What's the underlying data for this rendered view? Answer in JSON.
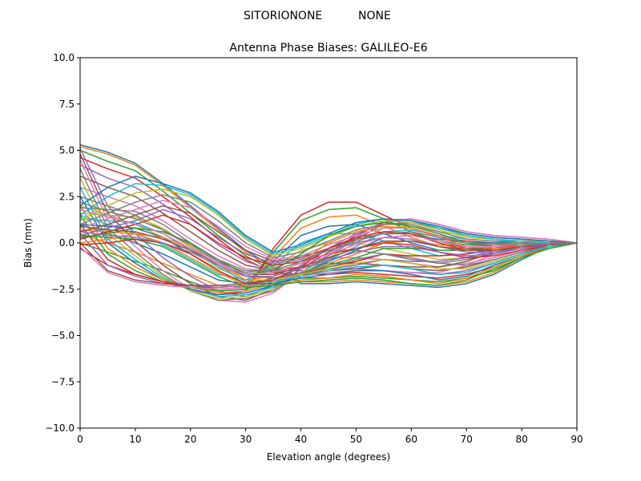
{
  "figure": {
    "suptitle_left": "SITORIONONE",
    "suptitle_right": "NONE"
  },
  "chart_data": {
    "type": "line",
    "title": "Antenna Phase Biases: GALILEO-E6",
    "xlabel": "Elevation angle (degrees)",
    "ylabel": "Bias (mm)",
    "xlim": [
      0,
      90
    ],
    "ylim": [
      -10,
      10
    ],
    "xticks": [
      0,
      10,
      20,
      30,
      40,
      50,
      60,
      70,
      80,
      90
    ],
    "yticks": [
      -10.0,
      -7.5,
      -5.0,
      -2.5,
      0.0,
      2.5,
      5.0,
      7.5,
      10.0
    ],
    "ytick_labels": [
      "−10.0",
      "−7.5",
      "−5.0",
      "−2.5",
      "0.0",
      "2.5",
      "5.0",
      "7.5",
      "10.0"
    ],
    "x": [
      0,
      5,
      10,
      15,
      20,
      25,
      30,
      35,
      40,
      45,
      50,
      55,
      60,
      65,
      70,
      75,
      80,
      85,
      90
    ],
    "grid": false,
    "legend": "none",
    "palette": [
      "#1f77b4",
      "#ff7f0e",
      "#2ca02c",
      "#d62728",
      "#9467bd",
      "#8c564b",
      "#e377c2",
      "#7f7f7f",
      "#bcbd22",
      "#17becf"
    ],
    "series": [
      {
        "values": [
          5.3,
          4.9,
          4.3,
          3.2,
          2.0,
          0.8,
          -0.4,
          -1.3,
          -2.2,
          -2.2,
          -2.1,
          -2.2,
          -2.3,
          -2.4,
          -2.2,
          -1.7,
          -0.9,
          -0.2,
          0.0
        ]
      },
      {
        "values": [
          5.2,
          4.8,
          4.2,
          3.1,
          1.9,
          0.7,
          -0.5,
          -1.4,
          -2.1,
          -2.1,
          -2.0,
          -2.1,
          -2.2,
          -2.3,
          -2.1,
          -1.6,
          -0.8,
          -0.2,
          0.0
        ]
      },
      {
        "values": [
          5.0,
          4.4,
          3.9,
          2.8,
          1.6,
          0.4,
          -0.7,
          -1.5,
          -1.9,
          -1.9,
          -1.8,
          -1.9,
          -2.0,
          -2.1,
          -1.9,
          -1.5,
          -0.8,
          -0.2,
          0.0
        ]
      },
      {
        "values": [
          4.6,
          4.0,
          3.5,
          2.5,
          1.4,
          0.2,
          -0.9,
          -1.6,
          -1.7,
          -1.7,
          -1.6,
          -1.7,
          -1.8,
          -1.9,
          -1.7,
          -1.3,
          -0.7,
          -0.2,
          0.0
        ]
      },
      {
        "values": [
          4.2,
          3.5,
          3.0,
          2.1,
          1.0,
          -0.1,
          -1.0,
          -1.5,
          -1.5,
          -1.4,
          -1.4,
          -1.5,
          -1.6,
          -1.7,
          -1.5,
          -1.1,
          -0.6,
          -0.1,
          0.0
        ]
      },
      {
        "values": [
          3.6,
          3.0,
          2.5,
          1.6,
          0.6,
          -0.4,
          -1.2,
          -1.5,
          -1.3,
          -1.1,
          -1.1,
          -1.2,
          -1.4,
          -1.5,
          -1.3,
          -0.9,
          -0.5,
          -0.1,
          0.0
        ]
      },
      {
        "values": [
          3.0,
          2.5,
          2.0,
          1.2,
          0.2,
          -0.7,
          -1.4,
          -1.5,
          -1.0,
          -0.8,
          -0.8,
          -0.9,
          -1.1,
          -1.3,
          -1.1,
          -0.8,
          -0.4,
          -0.1,
          0.0
        ]
      },
      {
        "values": [
          2.5,
          2.0,
          1.5,
          0.7,
          -0.2,
          -1.0,
          -1.6,
          -1.4,
          -0.7,
          -0.4,
          -0.4,
          -0.6,
          -0.9,
          -1.1,
          -0.9,
          -0.6,
          -0.3,
          -0.1,
          0.0
        ]
      },
      {
        "values": [
          2.0,
          1.5,
          1.0,
          0.3,
          -0.6,
          -1.4,
          -1.8,
          -1.3,
          -0.4,
          0.0,
          0.0,
          -0.3,
          -0.6,
          -0.9,
          -0.8,
          -0.5,
          -0.3,
          -0.1,
          0.0
        ]
      },
      {
        "values": [
          1.5,
          1.0,
          0.5,
          -0.1,
          -0.9,
          -1.7,
          -2.0,
          -1.2,
          0.0,
          0.5,
          0.5,
          0.1,
          -0.3,
          -0.7,
          -0.6,
          -0.4,
          -0.2,
          0.0,
          0.0
        ]
      },
      {
        "values": [
          1.0,
          0.5,
          0.0,
          -0.6,
          -1.3,
          -2.0,
          -2.2,
          -1.0,
          0.4,
          0.9,
          1.0,
          0.5,
          0.0,
          -0.4,
          -0.4,
          -0.3,
          -0.1,
          0.0,
          0.0
        ]
      },
      {
        "values": [
          0.5,
          0.0,
          -0.5,
          -1.1,
          -1.7,
          -2.3,
          -2.4,
          -0.8,
          0.8,
          1.4,
          1.5,
          0.9,
          0.3,
          -0.2,
          -0.3,
          -0.2,
          -0.1,
          0.0,
          0.0
        ]
      },
      {
        "values": [
          0.0,
          -0.5,
          -1.0,
          -1.5,
          -2.1,
          -2.6,
          -2.5,
          -0.5,
          1.2,
          1.8,
          1.9,
          1.3,
          0.6,
          0.1,
          -0.1,
          -0.1,
          0.0,
          0.0,
          0.0
        ]
      },
      {
        "values": [
          -0.3,
          -1.2,
          -1.7,
          -2.1,
          -2.5,
          -2.8,
          -2.6,
          -0.3,
          1.5,
          2.2,
          2.2,
          1.5,
          0.8,
          0.3,
          0.1,
          0.0,
          0.0,
          0.0,
          0.0
        ]
      },
      {
        "values": [
          5.1,
          2.0,
          0.5,
          -0.8,
          -1.8,
          -2.6,
          -2.9,
          -2.3,
          -1.2,
          -0.3,
          0.5,
          1.0,
          1.1,
          0.8,
          0.5,
          0.3,
          0.2,
          0.1,
          0.0
        ]
      },
      {
        "values": [
          4.8,
          1.6,
          0.1,
          -1.2,
          -2.2,
          -2.9,
          -3.1,
          -2.5,
          -1.4,
          -0.5,
          0.4,
          1.1,
          1.3,
          1.0,
          0.6,
          0.4,
          0.3,
          0.2,
          0.0
        ]
      },
      {
        "values": [
          4.5,
          1.2,
          -0.2,
          -1.5,
          -2.5,
          -3.1,
          -3.2,
          -2.7,
          -1.6,
          -0.6,
          0.3,
          1.2,
          1.3,
          1.0,
          0.6,
          0.4,
          0.3,
          0.2,
          0.0
        ]
      },
      {
        "values": [
          4.0,
          0.8,
          -0.5,
          -1.7,
          -2.6,
          -3.1,
          -3.0,
          -2.6,
          -1.6,
          -0.7,
          0.2,
          1.0,
          1.1,
          0.8,
          0.5,
          0.3,
          0.2,
          0.1,
          0.0
        ]
      },
      {
        "values": [
          3.5,
          0.5,
          -0.7,
          -1.8,
          -2.6,
          -3.0,
          -2.9,
          -2.5,
          -1.6,
          -0.8,
          0.0,
          0.8,
          0.9,
          0.6,
          0.4,
          0.2,
          0.1,
          0.1,
          0.0
        ]
      },
      {
        "values": [
          3.0,
          0.2,
          -0.9,
          -1.9,
          -2.5,
          -2.9,
          -2.8,
          -2.4,
          -1.7,
          -0.9,
          -0.2,
          0.6,
          0.7,
          0.4,
          0.2,
          0.1,
          0.1,
          0.0,
          0.0
        ]
      },
      {
        "values": [
          2.5,
          0.0,
          -1.1,
          -2.0,
          -2.5,
          -2.8,
          -2.7,
          -2.3,
          -1.7,
          -1.0,
          -0.4,
          0.3,
          0.4,
          0.2,
          0.0,
          0.0,
          0.0,
          0.0,
          0.0
        ]
      },
      {
        "values": [
          2.0,
          -0.3,
          -1.3,
          -2.0,
          -2.4,
          -2.7,
          -2.6,
          -2.2,
          -1.7,
          -1.1,
          -0.6,
          0.0,
          0.1,
          -0.1,
          -0.2,
          -0.1,
          0.0,
          0.0,
          0.0
        ]
      },
      {
        "values": [
          1.5,
          -0.6,
          -1.5,
          -2.1,
          -2.4,
          -2.6,
          -2.5,
          -2.1,
          -1.7,
          -1.2,
          -0.8,
          -0.3,
          -0.3,
          -0.4,
          -0.4,
          -0.2,
          -0.1,
          0.0,
          0.0
        ]
      },
      {
        "values": [
          1.0,
          -0.9,
          -1.7,
          -2.1,
          -2.3,
          -2.5,
          -2.4,
          -2.0,
          -1.7,
          -1.3,
          -1.0,
          -0.6,
          -0.7,
          -0.7,
          -0.6,
          -0.3,
          -0.1,
          0.0,
          0.0
        ]
      },
      {
        "values": [
          0.5,
          -1.2,
          -1.8,
          -2.2,
          -2.3,
          -2.4,
          -2.3,
          -2.0,
          -1.7,
          -1.4,
          -1.2,
          -0.9,
          -1.0,
          -1.0,
          -0.8,
          -0.4,
          -0.2,
          0.0,
          0.0
        ]
      },
      {
        "values": [
          0.0,
          -1.5,
          -2.0,
          -2.2,
          -2.3,
          -2.3,
          -2.2,
          -1.9,
          -1.7,
          -1.5,
          -1.4,
          -1.2,
          -1.3,
          -1.3,
          -1.0,
          -0.5,
          -0.2,
          -0.1,
          0.0
        ]
      },
      {
        "values": [
          -0.2,
          -1.6,
          -2.1,
          -2.3,
          -2.4,
          -2.5,
          -2.4,
          -2.0,
          -1.8,
          -1.6,
          -1.5,
          -1.5,
          -1.6,
          -1.6,
          -1.2,
          -0.6,
          -0.3,
          -0.1,
          0.0
        ]
      },
      {
        "values": [
          1.9,
          1.8,
          1.7,
          1.0,
          0.0,
          -1.0,
          -1.8,
          -1.9,
          -1.6,
          -1.3,
          -0.9,
          -0.6,
          -0.8,
          -1.1,
          -1.2,
          -0.9,
          -0.5,
          -0.2,
          0.0
        ]
      },
      {
        "values": [
          1.6,
          1.5,
          1.4,
          0.8,
          -0.2,
          -1.2,
          -2.0,
          -2.0,
          -1.7,
          -1.4,
          -1.1,
          -0.9,
          -1.1,
          -1.4,
          -1.4,
          -1.0,
          -0.6,
          -0.2,
          0.0
        ]
      },
      {
        "values": [
          1.3,
          1.2,
          1.1,
          0.5,
          -0.4,
          -1.3,
          -2.1,
          -2.1,
          -1.8,
          -1.5,
          -1.3,
          -1.2,
          -1.4,
          -1.7,
          -1.6,
          -1.1,
          -0.6,
          -0.2,
          0.0
        ]
      },
      {
        "values": [
          1.0,
          0.9,
          0.8,
          0.3,
          -0.6,
          -1.5,
          -2.2,
          -2.2,
          -1.9,
          -1.7,
          -1.5,
          -1.5,
          -1.7,
          -2.0,
          -1.8,
          -1.2,
          -0.7,
          -0.3,
          0.0
        ]
      },
      {
        "values": [
          0.7,
          0.6,
          0.5,
          0.0,
          -0.8,
          -1.6,
          -2.3,
          -2.3,
          -2.0,
          -1.9,
          -1.7,
          -1.8,
          -2.0,
          -2.2,
          -1.9,
          -1.3,
          -0.7,
          -0.3,
          0.0
        ]
      },
      {
        "values": [
          0.4,
          0.3,
          0.2,
          -0.2,
          -1.0,
          -1.8,
          -2.4,
          -2.3,
          -2.1,
          -2.0,
          -1.9,
          -2.0,
          -2.2,
          -2.3,
          -2.0,
          -1.4,
          -0.8,
          -0.3,
          0.0
        ]
      },
      {
        "values": [
          0.2,
          0.6,
          1.0,
          1.5,
          1.0,
          0.0,
          -0.8,
          -1.2,
          -1.0,
          -0.6,
          -0.3,
          0.0,
          -0.1,
          -0.5,
          -0.8,
          -0.7,
          -0.4,
          -0.1,
          0.0
        ]
      },
      {
        "values": [
          0.4,
          0.8,
          1.2,
          1.8,
          1.3,
          0.3,
          -0.6,
          -1.1,
          -0.9,
          -0.4,
          0.0,
          0.3,
          0.2,
          -0.2,
          -0.5,
          -0.5,
          -0.3,
          -0.1,
          0.0
        ]
      },
      {
        "values": [
          0.6,
          1.0,
          1.5,
          2.0,
          1.6,
          0.6,
          -0.4,
          -1.0,
          -0.8,
          -0.3,
          0.2,
          0.5,
          0.5,
          0.1,
          -0.3,
          -0.3,
          -0.2,
          -0.1,
          0.0
        ]
      },
      {
        "values": [
          0.8,
          1.3,
          1.8,
          2.3,
          1.9,
          0.9,
          -0.2,
          -0.9,
          -0.7,
          -0.1,
          0.4,
          0.8,
          0.8,
          0.4,
          0.0,
          -0.1,
          -0.1,
          0.0,
          0.0
        ]
      },
      {
        "values": [
          1.0,
          1.6,
          2.2,
          2.6,
          2.2,
          1.2,
          0.0,
          -0.8,
          -0.5,
          0.1,
          0.7,
          1.0,
          1.0,
          0.6,
          0.2,
          0.1,
          0.0,
          0.0,
          0.0
        ]
      },
      {
        "values": [
          1.2,
          2.0,
          2.7,
          2.9,
          2.5,
          1.5,
          0.2,
          -0.7,
          -0.3,
          0.3,
          0.9,
          1.2,
          1.1,
          0.7,
          0.3,
          0.2,
          0.1,
          0.0,
          0.0
        ]
      },
      {
        "values": [
          1.5,
          2.5,
          3.2,
          3.1,
          2.6,
          1.6,
          0.3,
          -0.6,
          -0.2,
          0.4,
          1.0,
          1.3,
          1.2,
          0.8,
          0.4,
          0.2,
          0.1,
          0.0,
          0.0
        ]
      },
      {
        "values": [
          2.0,
          3.0,
          3.6,
          3.2,
          2.7,
          1.7,
          0.4,
          -0.5,
          -0.1,
          0.5,
          1.1,
          1.3,
          1.2,
          0.9,
          0.5,
          0.3,
          0.2,
          0.1,
          0.0
        ]
      },
      {
        "values": [
          0.0,
          0.2,
          0.5,
          0.3,
          -0.3,
          -1.2,
          -2.0,
          -1.8,
          -1.0,
          0.0,
          0.6,
          0.9,
          0.8,
          0.3,
          -0.2,
          -0.3,
          -0.2,
          -0.1,
          0.0
        ]
      },
      {
        "values": [
          0.3,
          0.5,
          0.8,
          0.6,
          0.0,
          -0.9,
          -1.7,
          -1.5,
          -0.6,
          0.4,
          0.9,
          1.1,
          0.9,
          0.5,
          0.0,
          -0.2,
          -0.1,
          0.0,
          0.0
        ]
      },
      {
        "values": [
          -0.1,
          0.0,
          0.2,
          0.0,
          -0.6,
          -1.5,
          -2.2,
          -2.0,
          -1.3,
          -0.3,
          0.3,
          0.6,
          0.5,
          0.0,
          -0.4,
          -0.4,
          -0.2,
          -0.1,
          0.0
        ]
      },
      {
        "values": [
          0.6,
          0.4,
          0.3,
          0.0,
          -0.5,
          -1.2,
          -1.8,
          -1.8,
          -1.4,
          -0.9,
          -0.5,
          -0.2,
          -0.2,
          -0.5,
          -0.7,
          -0.6,
          -0.3,
          -0.1,
          0.0
        ]
      },
      {
        "values": [
          0.9,
          0.7,
          0.6,
          0.2,
          -0.4,
          -1.1,
          -1.7,
          -1.7,
          -1.3,
          -0.8,
          -0.3,
          0.1,
          0.1,
          -0.2,
          -0.4,
          -0.4,
          -0.2,
          -0.1,
          0.0
        ]
      },
      {
        "values": [
          1.8,
          1.4,
          1.0,
          0.5,
          -0.3,
          -1.1,
          -1.7,
          -1.6,
          -1.1,
          -0.6,
          -0.1,
          0.3,
          0.4,
          0.1,
          -0.2,
          -0.2,
          -0.1,
          0.0,
          0.0
        ]
      },
      {
        "values": [
          2.2,
          1.7,
          1.3,
          0.7,
          -0.1,
          -0.9,
          -1.5,
          -1.5,
          -1.0,
          -0.4,
          0.1,
          0.5,
          0.6,
          0.3,
          0.0,
          -0.1,
          -0.1,
          0.0,
          0.0
        ]
      }
    ]
  }
}
